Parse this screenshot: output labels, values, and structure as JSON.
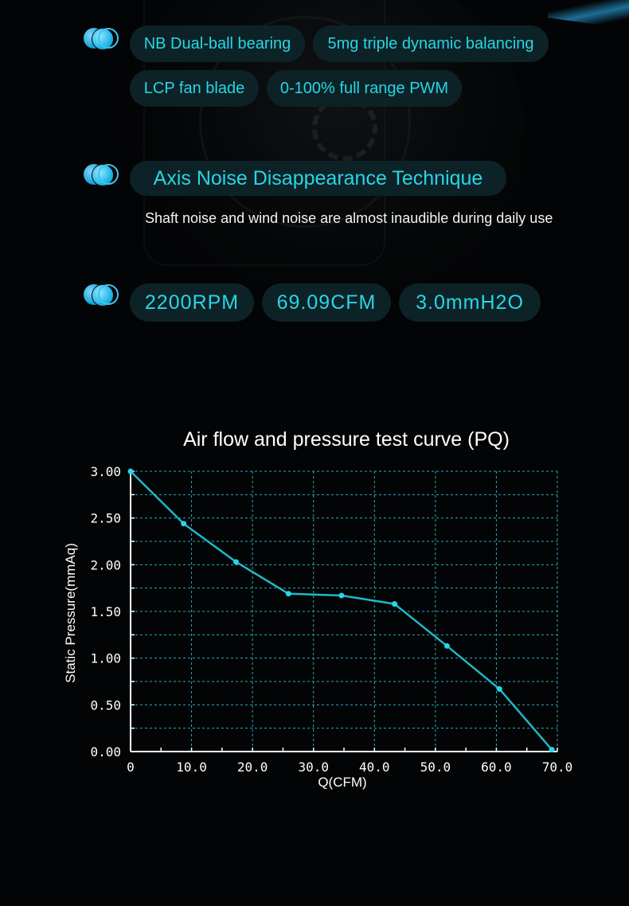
{
  "features": {
    "row1": [
      "NB Dual-ball bearing",
      "5mg triple dynamic balancing"
    ],
    "row2": [
      "LCP fan blade",
      "0-100% full range PWM"
    ]
  },
  "noise": {
    "title": "Axis Noise Disappearance Technique",
    "description": "Shaft noise and wind noise are almost inaudible during daily use"
  },
  "specs": [
    "2200RPM",
    "69.09CFM",
    "3.0mmH2O"
  ],
  "colors": {
    "accent": "#27d6e6",
    "pill_bg": "#0d2226",
    "grid": "#1fb0c8",
    "line": "#1fb8c6",
    "background": "#030405"
  },
  "chart_data": {
    "type": "line",
    "title": "Air flow and pressure test curve (PQ)",
    "xlabel": "Q(CFM)",
    "ylabel": "Static Pressure(mmAq)",
    "xlim": [
      0,
      70
    ],
    "ylim": [
      0,
      3
    ],
    "x_ticks": [
      "0",
      "10.0",
      "20.0",
      "30.0",
      "40.0",
      "50.0",
      "60.0",
      "70.0"
    ],
    "y_ticks": [
      "0.00",
      "0.50",
      "1.00",
      "1.50",
      "2.00",
      "2.50",
      "3.00"
    ],
    "grid": true,
    "series": [
      {
        "x": [
          0,
          8.7,
          17.3,
          25.9,
          34.6,
          43.3,
          51.9,
          60.5,
          69.1
        ],
        "y": [
          3.0,
          2.44,
          2.03,
          1.69,
          1.67,
          1.58,
          1.13,
          0.67,
          0.02
        ]
      }
    ]
  }
}
